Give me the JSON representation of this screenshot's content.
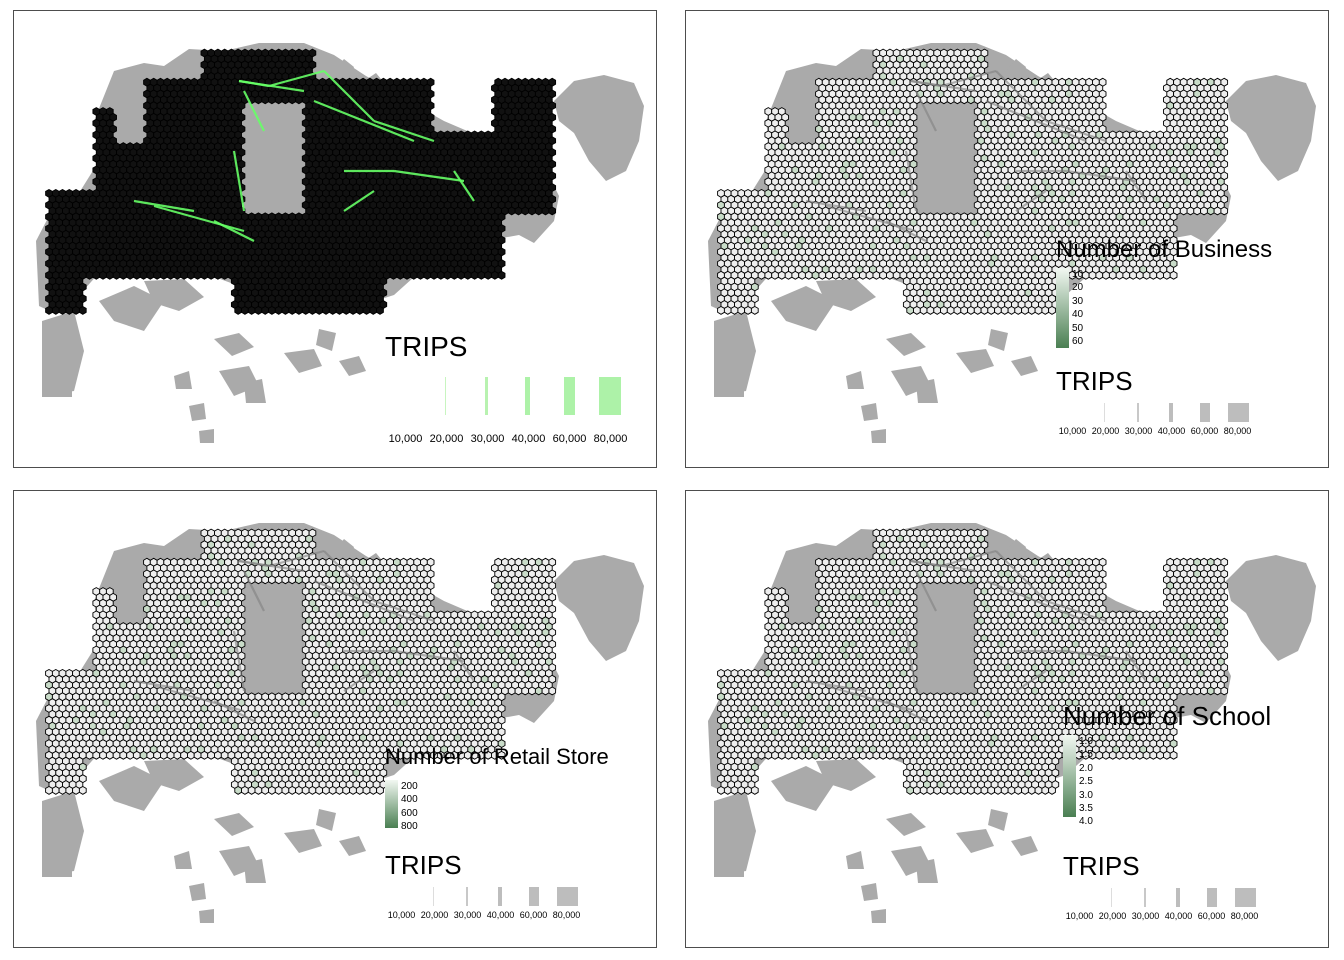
{
  "colors": {
    "land": "#aaaaaa",
    "panel_border": "#4d4d4d",
    "hex_fill_dark": "#111111",
    "hex_fill_light": "#eeeeee",
    "hex_stroke": "#000000",
    "flow_green": "#66ff66",
    "flow_grey": "#808080",
    "green_scale_low": "#f2f8f2",
    "green_scale_high": "#4a7f52"
  },
  "panels": [
    {
      "style": "dark-hex-green-flows",
      "trips_legend": {
        "title": "TRIPS",
        "breaks": [
          "10,000",
          "20,000",
          "30,000",
          "40,000",
          "60,000",
          "80,000"
        ]
      }
    },
    {
      "style": "light-hex-grey-flows",
      "fill_legend": {
        "title": "Number of Business",
        "ticks": [
          "10",
          "20",
          "30",
          "40",
          "50",
          "60"
        ]
      },
      "trips_legend": {
        "title": "TRIPS",
        "breaks": [
          "10,000",
          "20,000",
          "30,000",
          "40,000",
          "60,000",
          "80,000"
        ]
      }
    },
    {
      "style": "light-hex-grey-flows",
      "fill_legend": {
        "title": "Number of Retail Store",
        "ticks": [
          "200",
          "400",
          "600",
          "800"
        ]
      },
      "trips_legend": {
        "title": "TRIPS",
        "breaks": [
          "10,000",
          "20,000",
          "30,000",
          "40,000",
          "60,000",
          "80,000"
        ]
      }
    },
    {
      "style": "light-hex-grey-flows",
      "fill_legend": {
        "title": "Number of School",
        "ticks": [
          "1.0",
          "1.5",
          "2.0",
          "2.5",
          "3.0",
          "3.5",
          "4.0"
        ]
      },
      "trips_legend": {
        "title": "TRIPS",
        "breaks": [
          "10,000",
          "20,000",
          "30,000",
          "40,000",
          "60,000",
          "80,000"
        ]
      }
    }
  ]
}
